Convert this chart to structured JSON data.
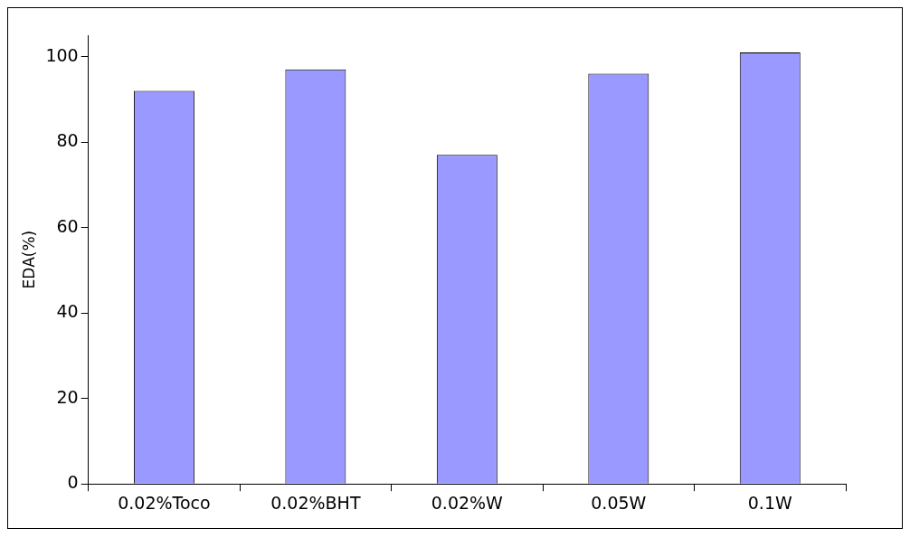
{
  "chart_data": {
    "type": "bar",
    "ylabel": "EDA(%)",
    "categories": [
      "0.02%Toco",
      "0.02%BHT",
      "0.02%W",
      "0.05W",
      "0.1W"
    ],
    "values": [
      92,
      97,
      77,
      96,
      101
    ],
    "color": "#9999ff",
    "ylim": [
      0,
      105
    ],
    "yticks": [
      0,
      20,
      40,
      60,
      80,
      100
    ],
    "grid": false,
    "legend": false
  }
}
